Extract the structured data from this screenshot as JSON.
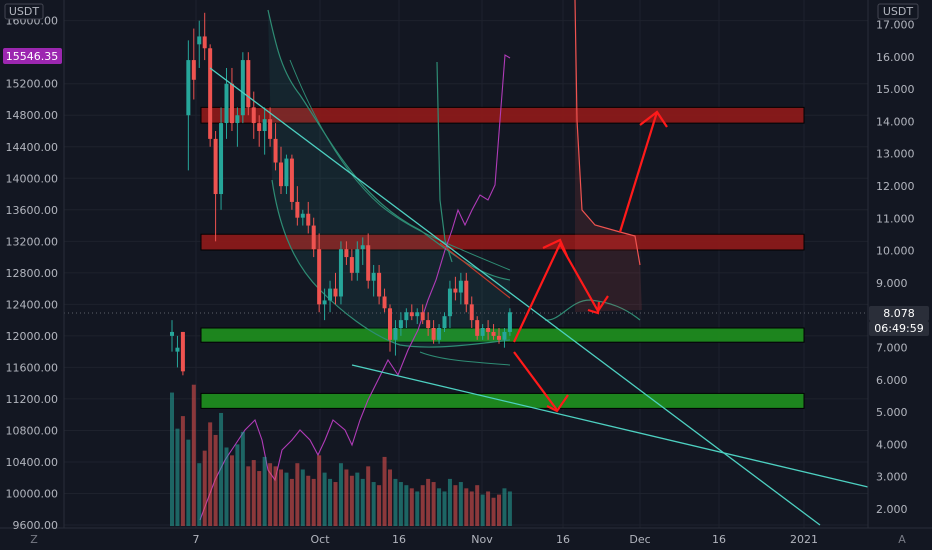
{
  "app": {
    "left_currency": "USDT",
    "right_currency": "USDT",
    "corner_left": "Z",
    "corner_right": "A"
  },
  "price_tag": {
    "value": "15546.35",
    "color": "#9c27b0"
  },
  "right_tags": [
    {
      "value": "8.078",
      "color": "#2a2e39"
    },
    {
      "value": "06:49:59",
      "color": "#2a2e39"
    }
  ],
  "colors": {
    "up": "#26a69a",
    "down": "#ef5350",
    "trend": "#4dd0c1",
    "arrow": "#ff1a1a",
    "resist": "#8b1a1a",
    "support": "#1e8b1e",
    "rsi": "#b03bb8",
    "band": "#2e8c74"
  },
  "chart_data": {
    "type": "candlestick",
    "left_axis": {
      "ticks": [
        9600,
        10000,
        10400,
        10800,
        11200,
        11600,
        12000,
        12400,
        12800,
        13200,
        13600,
        14000,
        14400,
        14800,
        15200,
        16000
      ],
      "labels": [
        "9600.00",
        "10000.00",
        "10400.00",
        "10800.00",
        "11200.00",
        "11600.00",
        "12000.00",
        "12400.00",
        "12800.00",
        "13200.00",
        "13600.00",
        "14000.00",
        "14400.00",
        "14800.00",
        "15200.00",
        "16000.00"
      ],
      "range": [
        9600,
        16400
      ]
    },
    "right_axis": {
      "ticks": [
        2,
        3,
        4,
        5,
        6,
        7,
        8,
        9,
        10,
        11,
        12,
        13,
        14,
        15,
        16,
        17
      ],
      "labels": [
        "2.000",
        "3.000",
        "4.000",
        "5.000",
        "6.000",
        "7.000",
        "8.000",
        "9.000",
        "10.000",
        "11.000",
        "12.000",
        "13.000",
        "14.000",
        "15.000",
        "16.000",
        "17.000"
      ],
      "range": [
        1.5,
        17.5
      ]
    },
    "x_axis": {
      "labels": [
        "7",
        "Oct",
        "16",
        "Nov",
        "16",
        "Dec",
        "16",
        "2021"
      ]
    },
    "zones": [
      {
        "kind": "resistance",
        "low": 14700,
        "high": 14900
      },
      {
        "kind": "resistance",
        "low": 13090,
        "high": 13290
      },
      {
        "kind": "support",
        "low": 11920,
        "high": 12100
      },
      {
        "kind": "support",
        "low": 11080,
        "high": 11270
      }
    ],
    "candles": [
      [
        12000,
        12200,
        11800,
        12050
      ],
      [
        11800,
        12000,
        11600,
        11850
      ],
      [
        12050,
        12050,
        11500,
        11550
      ],
      [
        14800,
        15750,
        14100,
        15500
      ],
      [
        15500,
        15900,
        15000,
        15250
      ],
      [
        15700,
        16000,
        15400,
        15800
      ],
      [
        15800,
        16100,
        15500,
        15650
      ],
      [
        15650,
        15700,
        14400,
        14500
      ],
      [
        14500,
        14600,
        13200,
        13800
      ],
      [
        13800,
        14900,
        13600,
        14700
      ],
      [
        14700,
        15400,
        14500,
        15200
      ],
      [
        15200,
        15400,
        14600,
        14700
      ],
      [
        14700,
        14900,
        14400,
        14800
      ],
      [
        14800,
        15600,
        14700,
        15500
      ],
      [
        15500,
        15600,
        14800,
        14900
      ],
      [
        14900,
        15100,
        14500,
        14700
      ],
      [
        14700,
        14800,
        14400,
        14600
      ],
      [
        14600,
        14900,
        14300,
        14750
      ],
      [
        14750,
        14900,
        14400,
        14500
      ],
      [
        14500,
        14700,
        14100,
        14200
      ],
      [
        14200,
        14400,
        13800,
        13900
      ],
      [
        13900,
        14300,
        13800,
        14250
      ],
      [
        14250,
        14300,
        13600,
        13700
      ],
      [
        13700,
        13900,
        13400,
        13500
      ],
      [
        13500,
        13600,
        13400,
        13550
      ],
      [
        13550,
        13700,
        13300,
        13400
      ],
      [
        13400,
        13500,
        13000,
        13100
      ],
      [
        13100,
        13300,
        12300,
        12400
      ],
      [
        12400,
        12600,
        12200,
        12450
      ],
      [
        12450,
        12700,
        12300,
        12600
      ],
      [
        12600,
        12800,
        12400,
        12500
      ],
      [
        12500,
        13200,
        12400,
        13100
      ],
      [
        13100,
        13200,
        12900,
        13000
      ],
      [
        13000,
        13100,
        12700,
        12800
      ],
      [
        12800,
        13200,
        12700,
        13100
      ],
      [
        13100,
        13250,
        12900,
        13150
      ],
      [
        13150,
        13300,
        12600,
        12700
      ],
      [
        12700,
        12900,
        12500,
        12800
      ],
      [
        12800,
        12900,
        12400,
        12500
      ],
      [
        12500,
        12600,
        12300,
        12350
      ],
      [
        12350,
        12400,
        11800,
        11950
      ],
      [
        11950,
        12200,
        11750,
        12100
      ],
      [
        12100,
        12300,
        12000,
        12200
      ],
      [
        12200,
        12350,
        12100,
        12300
      ],
      [
        12300,
        12400,
        12200,
        12250
      ],
      [
        12250,
        12350,
        12150,
        12300
      ],
      [
        12300,
        12400,
        12150,
        12200
      ],
      [
        12200,
        12300,
        12000,
        12100
      ],
      [
        12100,
        12200,
        11900,
        11950
      ],
      [
        11950,
        12150,
        11900,
        12100
      ],
      [
        12100,
        12300,
        12050,
        12250
      ],
      [
        12250,
        12700,
        12100,
        12600
      ],
      [
        12600,
        12750,
        12450,
        12550
      ],
      [
        12550,
        12800,
        12400,
        12700
      ],
      [
        12700,
        12800,
        12300,
        12400
      ],
      [
        12400,
        12500,
        12100,
        12200
      ],
      [
        12200,
        12250,
        11950,
        12000
      ],
      [
        12000,
        12150,
        11950,
        12100
      ],
      [
        12100,
        12200,
        11950,
        12050
      ],
      [
        12050,
        12150,
        11950,
        12000
      ],
      [
        12000,
        12100,
        11900,
        11950
      ],
      [
        11950,
        12100,
        11850,
        12050
      ],
      [
        12050,
        12350,
        12000,
        12300
      ]
    ],
    "volume": [
      85,
      62,
      70,
      55,
      90,
      40,
      48,
      66,
      58,
      72,
      50,
      45,
      52,
      60,
      38,
      42,
      35,
      44,
      40,
      38,
      36,
      34,
      30,
      40,
      36,
      32,
      30,
      45,
      34,
      30,
      28,
      40,
      36,
      32,
      34,
      30,
      38,
      28,
      26,
      44,
      36,
      30,
      28,
      26,
      24,
      22,
      26,
      30,
      28,
      24,
      22,
      30,
      26,
      28,
      24,
      22,
      26,
      20,
      22,
      18,
      20,
      24,
      22
    ],
    "trendlines": [
      {
        "from": [
          "7",
          15550
        ],
        "to": [
          "2021",
          9500
        ]
      },
      {
        "from": [
          "Oct",
          11650
        ],
        "to": [
          "2021",
          10250
        ]
      }
    ]
  }
}
